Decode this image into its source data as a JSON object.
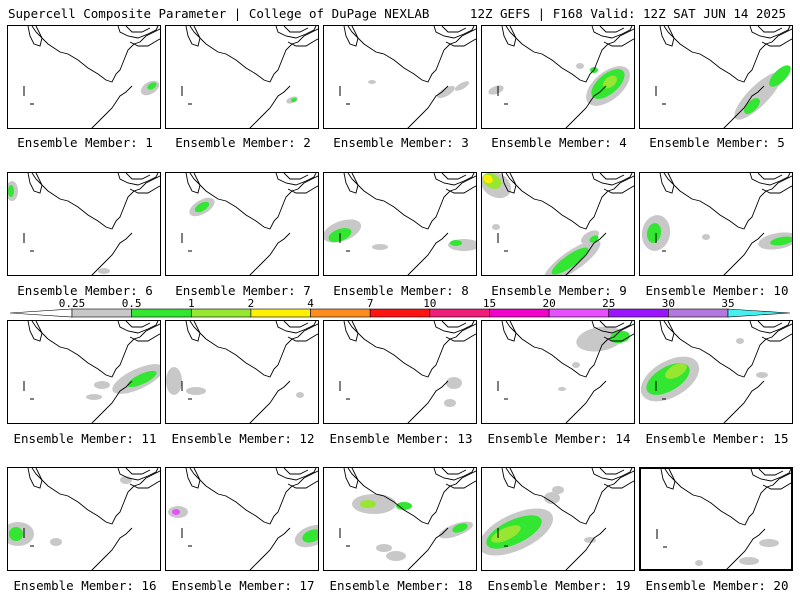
{
  "header": {
    "left": "Supercell Composite Parameter | College of DuPage NEXLAB",
    "right": "12Z GEFS | F168 Valid: 12Z SAT JUN 14 2025"
  },
  "member_label_prefix": "Ensemble Member: ",
  "members": [
    {
      "id": 1,
      "label": "Ensemble Member: 1"
    },
    {
      "id": 2,
      "label": "Ensemble Member: 2"
    },
    {
      "id": 3,
      "label": "Ensemble Member: 3"
    },
    {
      "id": 4,
      "label": "Ensemble Member: 4"
    },
    {
      "id": 5,
      "label": "Ensemble Member: 5"
    },
    {
      "id": 6,
      "label": "Ensemble Member: 6"
    },
    {
      "id": 7,
      "label": "Ensemble Member: 7"
    },
    {
      "id": 8,
      "label": "Ensemble Member: 8"
    },
    {
      "id": 9,
      "label": "Ensemble Member: 9"
    },
    {
      "id": 10,
      "label": "Ensemble Member: 10"
    },
    {
      "id": 11,
      "label": "Ensemble Member: 11"
    },
    {
      "id": 12,
      "label": "Ensemble Member: 12"
    },
    {
      "id": 13,
      "label": "Ensemble Member: 13"
    },
    {
      "id": 14,
      "label": "Ensemble Member: 14"
    },
    {
      "id": 15,
      "label": "Ensemble Member: 15"
    },
    {
      "id": 16,
      "label": "Ensemble Member: 16"
    },
    {
      "id": 17,
      "label": "Ensemble Member: 17"
    },
    {
      "id": 18,
      "label": "Ensemble Member: 18"
    },
    {
      "id": 19,
      "label": "Ensemble Member: 19"
    },
    {
      "id": 20,
      "label": "Ensemble Member: 20"
    }
  ],
  "selected_member": 20,
  "colorbar": {
    "ticks": [
      "0.25",
      "0.5",
      "1",
      "2",
      "4",
      "7",
      "10",
      "15",
      "20",
      "25",
      "30",
      "35"
    ],
    "colors": [
      "#c8c8c8",
      "#32e632",
      "#96e632",
      "#fff000",
      "#ff8c1e",
      "#ff1414",
      "#f01e78",
      "#f000c8",
      "#e650ff",
      "#9a14ff",
      "#b478dc",
      "#46f0f0"
    ]
  },
  "colors": {
    "light": "#c8c8c8",
    "green": "#32e632",
    "lime": "#96e632",
    "yellow": "#fff000",
    "magenta": "#e650ff"
  }
}
